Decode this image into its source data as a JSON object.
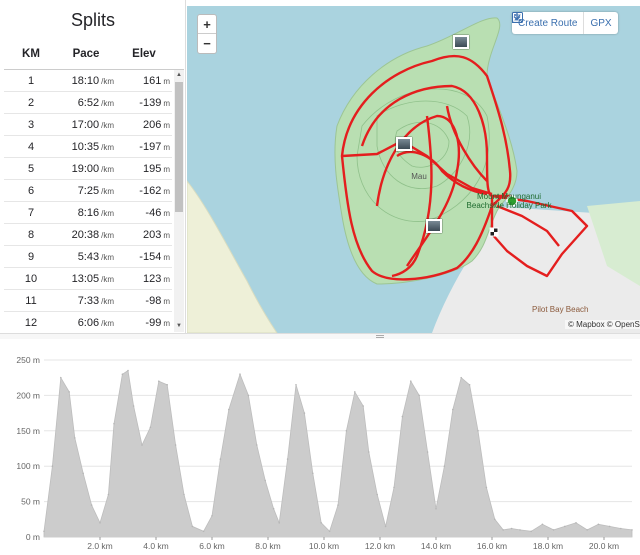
{
  "splits": {
    "title": "Splits",
    "headers": {
      "km": "KM",
      "pace": "Pace",
      "elev": "Elev"
    },
    "pace_unit": "/km",
    "elev_unit": "m",
    "rows": [
      {
        "km": "1",
        "pace": "18:10",
        "elev": "161"
      },
      {
        "km": "2",
        "pace": "6:52",
        "elev": "-139"
      },
      {
        "km": "3",
        "pace": "17:00",
        "elev": "206"
      },
      {
        "km": "4",
        "pace": "10:35",
        "elev": "-197"
      },
      {
        "km": "5",
        "pace": "19:00",
        "elev": "195"
      },
      {
        "km": "6",
        "pace": "7:25",
        "elev": "-162"
      },
      {
        "km": "7",
        "pace": "8:16",
        "elev": "-46"
      },
      {
        "km": "8",
        "pace": "20:38",
        "elev": "203"
      },
      {
        "km": "9",
        "pace": "5:43",
        "elev": "-154"
      },
      {
        "km": "10",
        "pace": "13:05",
        "elev": "123"
      },
      {
        "km": "11",
        "pace": "7:33",
        "elev": "-98"
      },
      {
        "km": "12",
        "pace": "6:06",
        "elev": "-99"
      }
    ]
  },
  "map": {
    "zoom_in": "+",
    "zoom_out": "−",
    "create_route": "Create Route",
    "gpx": "GPX",
    "place_label": "Mount Maunganui Beachside Holiday Park",
    "summit_label": "Mau",
    "pilot_bay": "Pilot Bay Beach",
    "attribution": "© Mapbox © OpenStreetMap",
    "route_color": "#e41e1e",
    "water_color": "#aad3df",
    "park_color": "#b9dfb2"
  },
  "chart_data": {
    "type": "area",
    "title": "",
    "xlabel": "",
    "ylabel": "",
    "x_unit": "km",
    "y_unit": "m",
    "xlim": [
      0,
      21.0
    ],
    "ylim": [
      0,
      250
    ],
    "y_ticks": [
      "0 m",
      "50 m",
      "100 m",
      "150 m",
      "200 m",
      "250 m"
    ],
    "x_ticks": [
      "2.0 km",
      "4.0 km",
      "6.0 km",
      "8.0 km",
      "10.0 km",
      "12.0 km",
      "14.0 km",
      "16.0 km",
      "18.0 km",
      "20.0 km"
    ],
    "x_tick_values": [
      2,
      4,
      6,
      8,
      10,
      12,
      14,
      16,
      18,
      20
    ],
    "y_tick_values": [
      0,
      50,
      100,
      150,
      200,
      250
    ],
    "fill_color": "#cccccc",
    "x": [
      0.0,
      0.3,
      0.6,
      0.9,
      1.1,
      1.4,
      1.7,
      2.0,
      2.3,
      2.5,
      2.8,
      3.0,
      3.2,
      3.5,
      3.8,
      4.1,
      4.4,
      4.7,
      5.0,
      5.3,
      5.7,
      6.0,
      6.3,
      6.6,
      7.0,
      7.3,
      7.6,
      7.9,
      8.2,
      8.4,
      8.7,
      9.0,
      9.3,
      9.6,
      9.9,
      10.2,
      10.5,
      10.8,
      11.1,
      11.4,
      11.6,
      11.9,
      12.2,
      12.5,
      12.8,
      13.1,
      13.4,
      13.7,
      14.0,
      14.3,
      14.6,
      14.9,
      15.2,
      15.5,
      15.8,
      16.1,
      16.4,
      16.7,
      17.0,
      17.4,
      17.8,
      18.2,
      18.6,
      19.0,
      19.4,
      19.8,
      20.2,
      20.6,
      21.0
    ],
    "values": [
      8,
      100,
      225,
      205,
      140,
      90,
      45,
      20,
      60,
      160,
      230,
      235,
      185,
      130,
      155,
      220,
      215,
      130,
      60,
      15,
      8,
      30,
      110,
      180,
      230,
      200,
      130,
      80,
      40,
      20,
      110,
      215,
      175,
      90,
      20,
      8,
      45,
      150,
      205,
      185,
      120,
      60,
      15,
      70,
      170,
      220,
      200,
      120,
      40,
      100,
      180,
      225,
      215,
      150,
      70,
      25,
      10,
      12,
      10,
      8,
      18,
      10,
      15,
      20,
      10,
      18,
      15,
      12,
      10
    ]
  }
}
